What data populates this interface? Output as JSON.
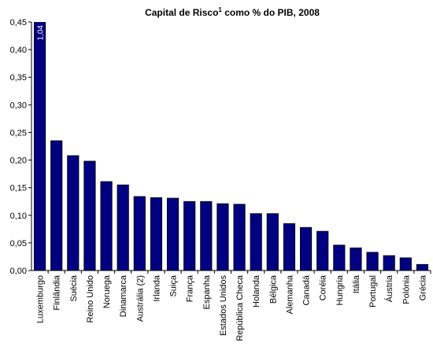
{
  "chart_data": {
    "type": "bar",
    "title": [
      "Capital de Risco",
      "1",
      " como % do PIB, 2008"
    ],
    "categories": [
      "Luxemburgo",
      "Finlândia",
      "Suécia",
      "Reino Unido",
      "Noruega",
      "Dinamarca",
      "Austrália (2)",
      "Irlanda",
      "Suiça",
      "França",
      "Espanha",
      "Estados Unidos",
      "República Checa",
      "Holanda",
      "Bélgica",
      "Alemanha",
      "Canadá",
      "Coréia",
      "Hungria",
      "Itália",
      "Portugal",
      "Áustria",
      "Polónia",
      "Grécia"
    ],
    "values": [
      1.04,
      0.235,
      0.208,
      0.198,
      0.161,
      0.155,
      0.134,
      0.132,
      0.131,
      0.125,
      0.125,
      0.121,
      0.12,
      0.103,
      0.103,
      0.085,
      0.078,
      0.071,
      0.046,
      0.041,
      0.033,
      0.027,
      0.023,
      0.011
    ],
    "value_labels": [
      "1,04",
      null,
      null,
      null,
      null,
      null,
      null,
      null,
      null,
      null,
      null,
      null,
      null,
      null,
      null,
      null,
      null,
      null,
      null,
      null,
      null,
      null,
      null,
      null
    ],
    "color": "#000080",
    "ylim": [
      0,
      0.45
    ],
    "yticks": [
      {
        "value": 0,
        "label": "0,00"
      },
      {
        "value": 0.05,
        "label": "0,05"
      },
      {
        "value": 0.1,
        "label": "0,10"
      },
      {
        "value": 0.15,
        "label": "0,15"
      },
      {
        "value": 0.2,
        "label": "0,20"
      },
      {
        "value": 0.25,
        "label": "0,25"
      },
      {
        "value": 0.3,
        "label": "0,30"
      },
      {
        "value": 0.35,
        "label": "0,35"
      },
      {
        "value": 0.4,
        "label": "0,40"
      },
      {
        "value": 0.45,
        "label": "0,45"
      }
    ],
    "grid": false
  }
}
